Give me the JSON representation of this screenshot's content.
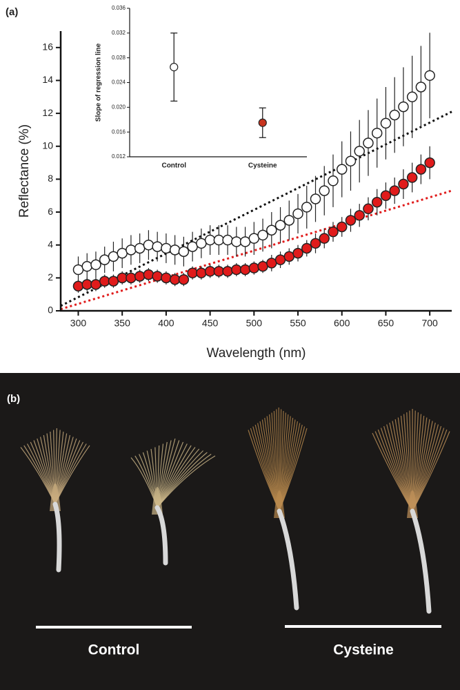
{
  "panel_a_label": "(a)",
  "chart_data": [
    {
      "type": "scatter",
      "xlabel": "Wavelength (nm)",
      "ylabel": "Reflectance (%)",
      "x": [
        300,
        310,
        320,
        330,
        340,
        350,
        360,
        370,
        380,
        390,
        400,
        410,
        420,
        430,
        440,
        450,
        460,
        470,
        480,
        490,
        500,
        510,
        520,
        530,
        540,
        550,
        560,
        570,
        580,
        590,
        600,
        610,
        620,
        630,
        640,
        650,
        660,
        670,
        680,
        690,
        700
      ],
      "series": [
        {
          "color": "#ffffff",
          "values": [
            2.5,
            2.7,
            2.8,
            3.1,
            3.3,
            3.5,
            3.7,
            3.8,
            4.0,
            3.9,
            3.8,
            3.7,
            3.6,
            3.9,
            4.1,
            4.3,
            4.3,
            4.3,
            4.2,
            4.2,
            4.4,
            4.6,
            4.9,
            5.2,
            5.5,
            5.9,
            6.3,
            6.8,
            7.3,
            7.9,
            8.6,
            9.1,
            9.7,
            10.2,
            10.8,
            11.4,
            11.9,
            12.4,
            13.0,
            13.6,
            14.3
          ],
          "errors": [
            0.8,
            0.8,
            0.8,
            0.8,
            0.9,
            0.9,
            0.9,
            0.9,
            0.9,
            0.9,
            0.9,
            0.9,
            0.9,
            0.9,
            0.9,
            0.9,
            0.9,
            0.9,
            0.9,
            0.9,
            1.0,
            1.0,
            1.1,
            1.1,
            1.2,
            1.2,
            1.3,
            1.4,
            1.5,
            1.6,
            1.7,
            1.8,
            1.9,
            2.0,
            2.1,
            2.2,
            2.3,
            2.4,
            2.5,
            2.5,
            2.6
          ]
        },
        {
          "color": "#e01b1b",
          "values": [
            1.5,
            1.6,
            1.6,
            1.8,
            1.8,
            2.0,
            2.0,
            2.1,
            2.2,
            2.1,
            2.0,
            1.9,
            1.9,
            2.3,
            2.3,
            2.4,
            2.4,
            2.4,
            2.5,
            2.5,
            2.6,
            2.7,
            2.9,
            3.1,
            3.3,
            3.5,
            3.8,
            4.1,
            4.4,
            4.8,
            5.1,
            5.5,
            5.8,
            6.2,
            6.6,
            7.0,
            7.3,
            7.7,
            8.1,
            8.6,
            9.0
          ],
          "errors": [
            0.4,
            0.4,
            0.4,
            0.4,
            0.4,
            0.4,
            0.4,
            0.4,
            0.4,
            0.4,
            0.4,
            0.4,
            0.4,
            0.4,
            0.4,
            0.4,
            0.4,
            0.4,
            0.4,
            0.4,
            0.4,
            0.4,
            0.5,
            0.5,
            0.5,
            0.5,
            0.5,
            0.6,
            0.6,
            0.6,
            0.6,
            0.7,
            0.7,
            0.7,
            0.8,
            0.8,
            0.8,
            0.9,
            0.9,
            0.9,
            1.0
          ]
        }
      ],
      "trend_lines": [
        {
          "color": "#111111",
          "x": [
            280,
            725
          ],
          "y": [
            0.3,
            12.1
          ]
        },
        {
          "color": "#e01b1b",
          "x": [
            280,
            725
          ],
          "y": [
            0.1,
            7.3
          ]
        }
      ],
      "xlim": [
        280,
        725
      ],
      "ylim": [
        0,
        17
      ],
      "xticks": [
        300,
        350,
        400,
        450,
        500,
        550,
        600,
        650,
        700
      ],
      "yticks": [
        0,
        2,
        4,
        6,
        8,
        10,
        12,
        14,
        16
      ]
    },
    {
      "type": "errorbar",
      "ylabel": "Slope of regression line",
      "categories": [
        "Control",
        "Cysteine"
      ],
      "values": [
        0.0265,
        0.0175
      ],
      "errors": [
        0.0055,
        0.0024
      ],
      "colors": [
        "#ffffff",
        "#c8341e"
      ],
      "ylim": [
        0.012,
        0.036
      ],
      "yticks": [
        0.012,
        0.016,
        {
          "value": 0.02,
          "label": "0.020"
        },
        0.024,
        0.028,
        0.032,
        0.036
      ]
    }
  ],
  "photo": {
    "label": "(b)",
    "groups": [
      "Control",
      "Cysteine"
    ]
  }
}
